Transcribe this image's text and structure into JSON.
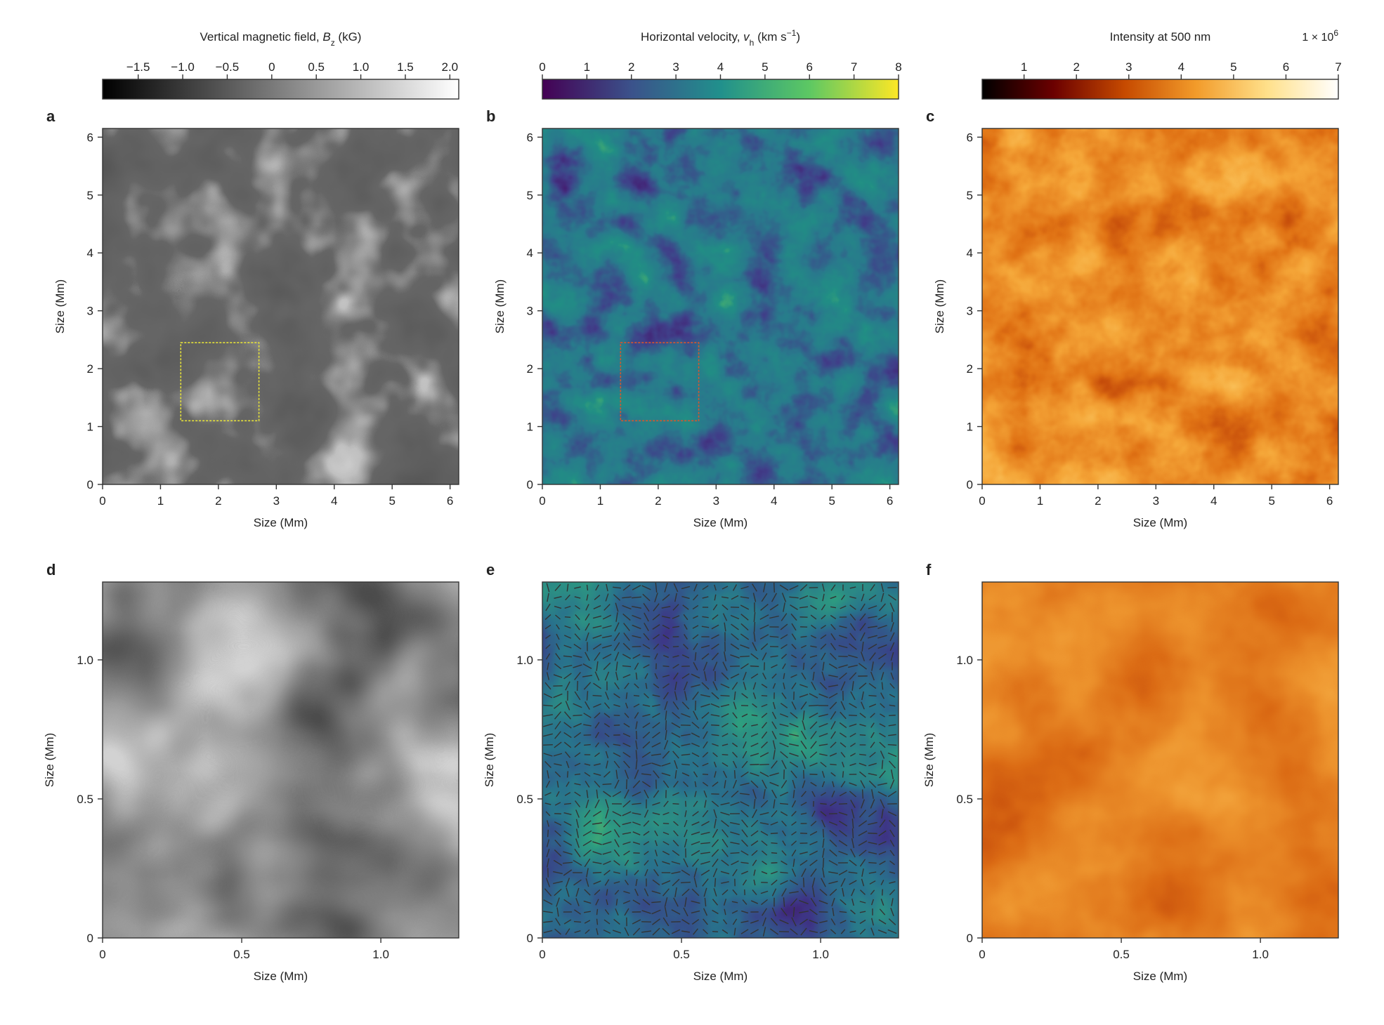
{
  "figure": {
    "colorbars": [
      {
        "id": "bz",
        "title_parts": [
          {
            "t": "Vertical magnetic field, ",
            "italic": false
          },
          {
            "t": "B",
            "italic": true
          },
          {
            "t": "z",
            "italic": false,
            "sub": true
          },
          {
            "t": " (kG)",
            "italic": false
          }
        ],
        "ticks": [
          "−1.5",
          "−1.0",
          "−0.5",
          "0",
          "0.5",
          "1.0",
          "1.5",
          "2.0"
        ],
        "tick_values": [
          -1.5,
          -1.0,
          -0.5,
          0,
          0.5,
          1.0,
          1.5,
          2.0
        ],
        "range": [
          -1.9,
          2.1
        ],
        "colormap": [
          "#000000",
          "#ffffff"
        ]
      },
      {
        "id": "vh",
        "title_parts": [
          {
            "t": "Horizontal velocity, ",
            "italic": false
          },
          {
            "t": "v",
            "italic": true
          },
          {
            "t": "h",
            "italic": false,
            "sub": true
          },
          {
            "t": " (km s",
            "italic": false
          },
          {
            "t": "−1",
            "italic": false,
            "sup": true
          },
          {
            "t": ")",
            "italic": false
          }
        ],
        "ticks": [
          "0",
          "1",
          "2",
          "3",
          "4",
          "5",
          "6",
          "7",
          "8"
        ],
        "tick_values": [
          0,
          1,
          2,
          3,
          4,
          5,
          6,
          7,
          8
        ],
        "range": [
          0,
          8
        ],
        "colormap": [
          "#440154",
          "#3b528b",
          "#21908c",
          "#5dc863",
          "#fde725"
        ]
      },
      {
        "id": "int",
        "title_parts": [
          {
            "t": "Intensity at 500 nm",
            "italic": false
          }
        ],
        "multiplier_parts": [
          {
            "t": "1 × 10",
            "italic": false
          },
          {
            "t": "6",
            "italic": false,
            "sup": true
          }
        ],
        "ticks": [
          "1",
          "2",
          "3",
          "4",
          "5",
          "6",
          "7"
        ],
        "tick_values": [
          1,
          2,
          3,
          4,
          5,
          6,
          7
        ],
        "range": [
          0.2,
          7.0
        ],
        "colormap": [
          "#000000",
          "#6b0000",
          "#c64a00",
          "#f29b2a",
          "#ffe08a",
          "#ffffff"
        ]
      }
    ],
    "panels": [
      {
        "id": "a",
        "letter": "a",
        "type": "bz",
        "extent": 6.15,
        "xticks": [
          "0",
          "1",
          "2",
          "3",
          "4",
          "5",
          "6"
        ],
        "yticks": [
          "0",
          "1",
          "2",
          "3",
          "4",
          "5",
          "6"
        ],
        "tick_values": [
          0,
          1,
          2,
          3,
          4,
          5,
          6
        ],
        "xlabel": "Size (Mm)",
        "ylabel": "Size (Mm)",
        "inset_box": {
          "x": [
            1.35,
            2.7
          ],
          "y": [
            1.1,
            2.45
          ],
          "color": "#e6e23a"
        }
      },
      {
        "id": "b",
        "letter": "b",
        "type": "vh",
        "extent": 6.15,
        "xticks": [
          "0",
          "1",
          "2",
          "3",
          "4",
          "5",
          "6"
        ],
        "yticks": [
          "0",
          "1",
          "2",
          "3",
          "4",
          "5",
          "6"
        ],
        "tick_values": [
          0,
          1,
          2,
          3,
          4,
          5,
          6
        ],
        "xlabel": "Size (Mm)",
        "ylabel": "Size (Mm)",
        "inset_box": {
          "x": [
            1.35,
            2.7
          ],
          "y": [
            1.1,
            2.45
          ],
          "color": "#d8562c"
        }
      },
      {
        "id": "c",
        "letter": "c",
        "type": "int",
        "extent": 6.15,
        "xticks": [
          "0",
          "1",
          "2",
          "3",
          "4",
          "5",
          "6"
        ],
        "yticks": [
          "0",
          "1",
          "2",
          "3",
          "4",
          "5",
          "6"
        ],
        "tick_values": [
          0,
          1,
          2,
          3,
          4,
          5,
          6
        ],
        "xlabel": "Size (Mm)",
        "ylabel": "Size (Mm)"
      },
      {
        "id": "d",
        "letter": "d",
        "type": "bz",
        "extent": 1.28,
        "xticks": [
          "0",
          "0.5",
          "1.0"
        ],
        "yticks": [
          "0",
          "0.5",
          "1.0"
        ],
        "tick_values": [
          0,
          0.5,
          1.0
        ],
        "xlabel": "Size (Mm)",
        "ylabel": "Size (Mm)"
      },
      {
        "id": "e",
        "letter": "e",
        "type": "vh",
        "extent": 1.28,
        "xticks": [
          "0",
          "0.5",
          "1.0"
        ],
        "yticks": [
          "0",
          "0.5",
          "1.0"
        ],
        "tick_values": [
          0,
          0.5,
          1.0
        ],
        "xlabel": "Size (Mm)",
        "ylabel": "Size (Mm)",
        "arrows": true
      },
      {
        "id": "f",
        "letter": "f",
        "type": "int",
        "extent": 1.28,
        "xticks": [
          "0",
          "0.5",
          "1.0"
        ],
        "yticks": [
          "0",
          "0.5",
          "1.0"
        ],
        "tick_values": [
          0,
          0.5,
          1.0
        ],
        "xlabel": "Size (Mm)",
        "ylabel": "Size (Mm)"
      }
    ]
  }
}
